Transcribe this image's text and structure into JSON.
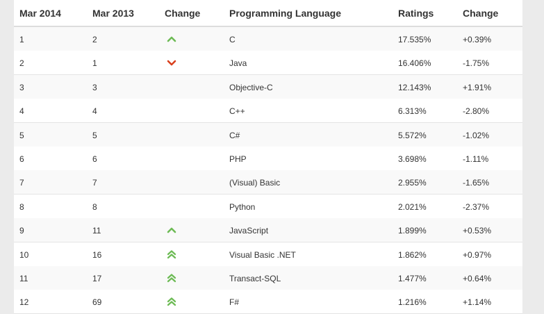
{
  "columns": [
    "Mar 2014",
    "Mar 2013",
    "Change",
    "Programming Language",
    "Ratings",
    "Change"
  ],
  "colors": {
    "up": "#6dbb55",
    "down": "#d9411e"
  },
  "rows": [
    {
      "mar2014": "1",
      "mar2013": "2",
      "change_icon": "chevron-up-icon",
      "language": "C",
      "rating": "17.535%",
      "delta": "+0.39%"
    },
    {
      "mar2014": "2",
      "mar2013": "1",
      "change_icon": "chevron-down-icon",
      "language": "Java",
      "rating": "16.406%",
      "delta": "-1.75%"
    },
    {
      "mar2014": "3",
      "mar2013": "3",
      "change_icon": "",
      "language": "Objective-C",
      "rating": "12.143%",
      "delta": "+1.91%"
    },
    {
      "mar2014": "4",
      "mar2013": "4",
      "change_icon": "",
      "language": "C++",
      "rating": "6.313%",
      "delta": "-2.80%"
    },
    {
      "mar2014": "5",
      "mar2013": "5",
      "change_icon": "",
      "language": "C#",
      "rating": "5.572%",
      "delta": "-1.02%"
    },
    {
      "mar2014": "6",
      "mar2013": "6",
      "change_icon": "",
      "language": "PHP",
      "rating": "3.698%",
      "delta": "-1.11%"
    },
    {
      "mar2014": "7",
      "mar2013": "7",
      "change_icon": "",
      "language": "(Visual) Basic",
      "rating": "2.955%",
      "delta": "-1.65%"
    },
    {
      "mar2014": "8",
      "mar2013": "8",
      "change_icon": "",
      "language": "Python",
      "rating": "2.021%",
      "delta": "-2.37%"
    },
    {
      "mar2014": "9",
      "mar2013": "11",
      "change_icon": "chevron-up-icon",
      "language": "JavaScript",
      "rating": "1.899%",
      "delta": "+0.53%"
    },
    {
      "mar2014": "10",
      "mar2013": "16",
      "change_icon": "double-chevron-up-icon",
      "language": "Visual Basic .NET",
      "rating": "1.862%",
      "delta": "+0.97%"
    },
    {
      "mar2014": "11",
      "mar2013": "17",
      "change_icon": "double-chevron-up-icon",
      "language": "Transact-SQL",
      "rating": "1.477%",
      "delta": "+0.64%"
    },
    {
      "mar2014": "12",
      "mar2013": "69",
      "change_icon": "double-chevron-up-icon",
      "language": "F#",
      "rating": "1.216%",
      "delta": "+1.14%"
    }
  ]
}
